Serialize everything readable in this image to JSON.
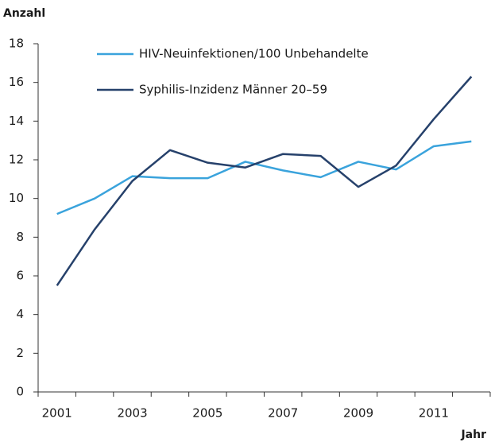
{
  "chart_data": {
    "type": "line",
    "y_label": "Anzahl",
    "x_label": "Jahr",
    "categories": [
      "2001",
      null,
      "2003",
      null,
      "2005",
      null,
      "2007",
      null,
      "2009",
      null,
      "2011",
      null
    ],
    "series": [
      {
        "name": "HIV-Neuinfektionen/100 Unbehandelte",
        "color": "#3aa3dc",
        "values": [
          9.2,
          10.0,
          11.15,
          11.05,
          11.05,
          11.9,
          11.45,
          11.1,
          11.9,
          11.5,
          12.7,
          12.95
        ]
      },
      {
        "name": "Syphilis-Inzidenz Männer 20–59",
        "color": "#26416b",
        "values": [
          5.5,
          8.4,
          10.9,
          12.5,
          11.85,
          11.6,
          12.3,
          12.2,
          10.6,
          11.7,
          14.1,
          16.3
        ]
      }
    ],
    "ylim": [
      0,
      18
    ],
    "yticks": [
      0,
      2,
      4,
      6,
      8,
      10,
      12,
      14,
      16,
      18
    ],
    "grid": false
  }
}
